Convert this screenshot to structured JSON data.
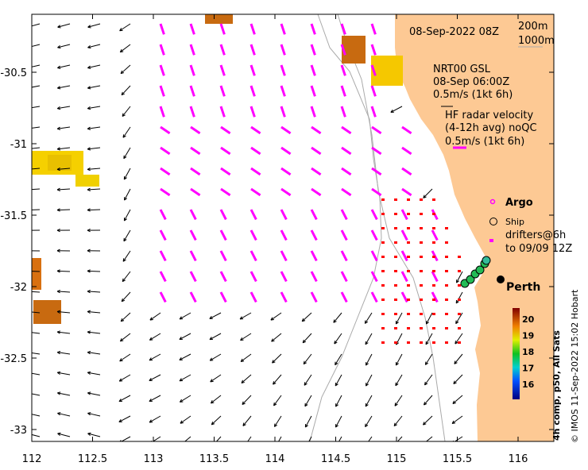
{
  "map": {
    "date_label": "08-Sep-2022 08Z",
    "isobaths": [
      "200m",
      "1000m"
    ],
    "model_label": [
      "NRT00 GSL",
      "08-Sep 06:00Z",
      "0.5m/s (1kt 6h)"
    ],
    "hf_radar_label": [
      "HF radar velocity",
      "(4-12h avg) noQC",
      "0.5m/s (1kt 6h)"
    ],
    "legend": {
      "argo": "Argo",
      "ship": "Ship",
      "drifters": [
        "drifters@6h",
        "to 09/09 12Z"
      ]
    },
    "city": "Perth",
    "colorbar": {
      "title": "4h comp, p50, All Sats",
      "ticks": [
        "16",
        "17",
        "18",
        "19",
        "20"
      ],
      "range": [
        15.5,
        20.8
      ]
    },
    "credit": "© IMOS 11-Sep-2022 15:02 Hobart",
    "x_ticks": [
      "112",
      "112.5",
      "113",
      "113.5",
      "114",
      "114.5",
      "115",
      "115.5",
      "116"
    ],
    "y_ticks": [
      "-30.5",
      "-31",
      "-31.5",
      "-32",
      "-32.5",
      "-33"
    ],
    "colors": {
      "land": "#fdc994",
      "hf": "#ff00ff",
      "model": "#000000",
      "drifter": "#ff0000"
    }
  }
}
